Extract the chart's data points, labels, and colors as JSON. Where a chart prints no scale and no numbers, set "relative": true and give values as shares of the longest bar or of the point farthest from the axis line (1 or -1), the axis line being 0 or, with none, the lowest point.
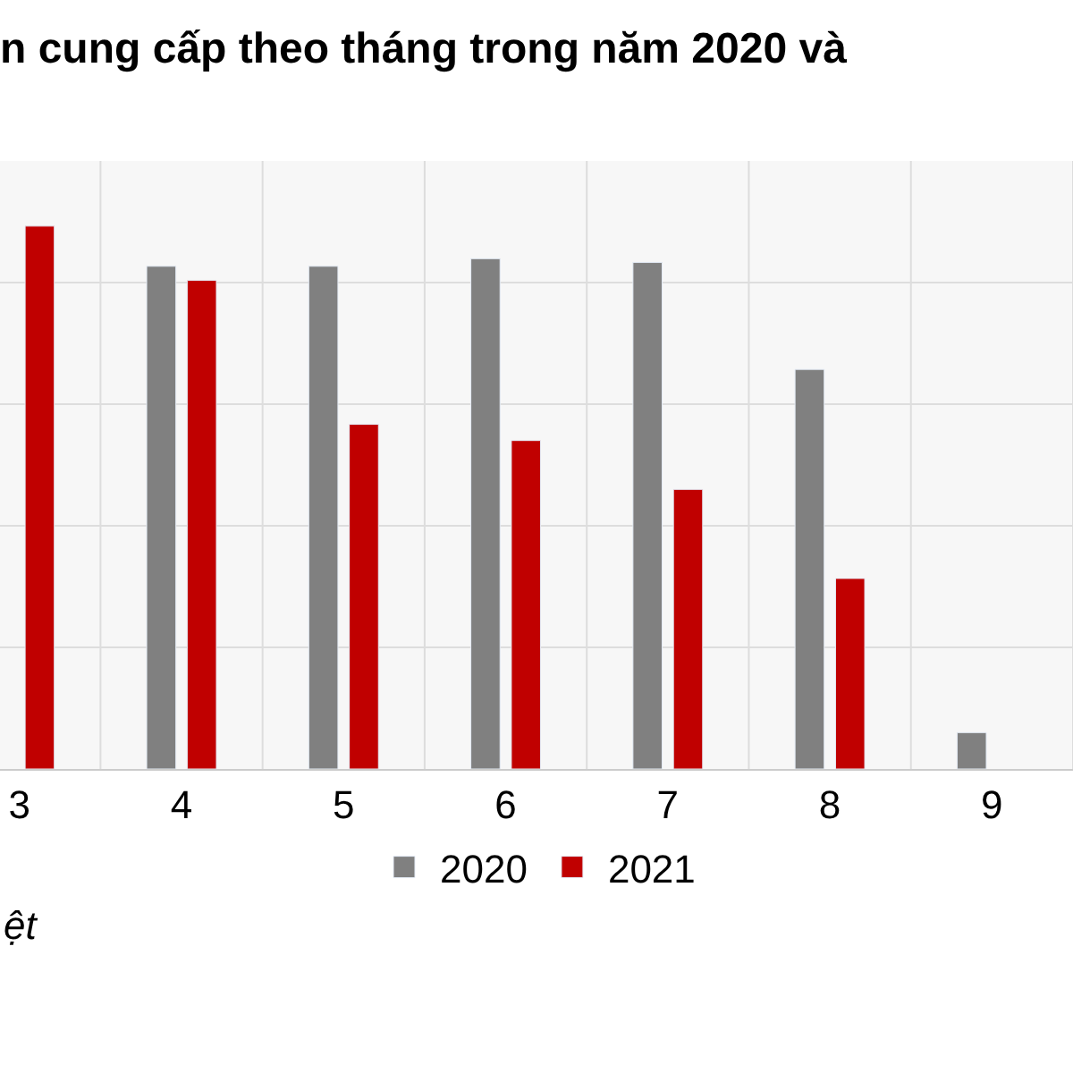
{
  "chart_data": {
    "type": "bar",
    "title": "n cung cấp theo tháng trong năm 2020 và",
    "relative": true,
    "categories": [
      "3",
      "4",
      "5",
      "6",
      "7",
      "8",
      "9"
    ],
    "series": [
      {
        "name": "2020",
        "color": "#808080",
        "values": [
          null,
          0.926,
          0.926,
          0.94,
          0.933,
          0.736,
          0.067
        ]
      },
      {
        "name": "2021",
        "color": "#c00000",
        "values": [
          1,
          0.9,
          0.635,
          0.605,
          0.515,
          0.351,
          null
        ]
      }
    ],
    "grid": true,
    "legend": "bottom",
    "annotations": [
      "ệt"
    ]
  }
}
